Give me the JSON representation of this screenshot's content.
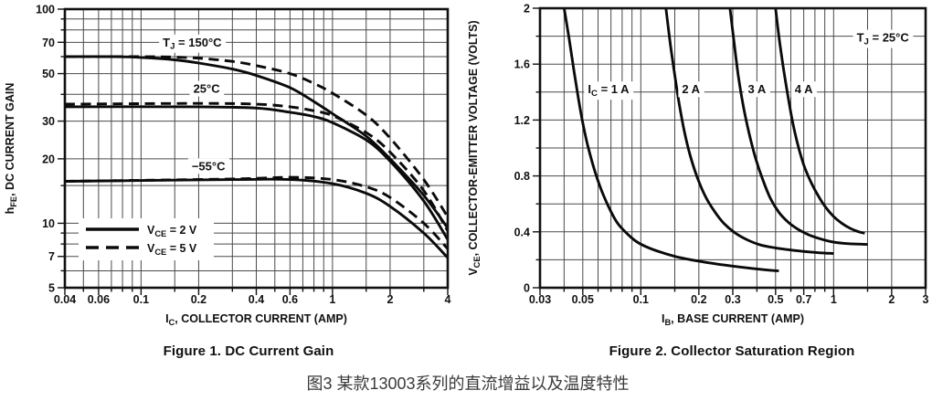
{
  "figure1": {
    "caption": "Figure 1. DC Current Gain"
  },
  "figure2": {
    "caption": "Figure 2. Collector Saturation Region"
  },
  "main_caption": "图3 某款13003系列的直流增益以及温度特性",
  "colors": {
    "curve": "#0a0a0a",
    "grid": "#4a4a4a",
    "frame": "#111111",
    "text": "#111111",
    "label_bg": "#ffffff"
  },
  "chart_data": [
    {
      "type": "line",
      "title": "Figure 1. DC Current Gain",
      "xlabel": "I[C], COLLECTOR CURRENT (AMP)",
      "ylabel": "h[FE], DC CURRENT GAIN",
      "x_scale": "log",
      "y_scale": "log",
      "xlim": [
        0.04,
        4
      ],
      "ylim": [
        5,
        100
      ],
      "grid": true,
      "x_ticks": [
        0.04,
        0.06,
        0.1,
        0.2,
        0.4,
        0.6,
        1,
        2,
        4
      ],
      "x_tick_labels": [
        "0.04",
        "0.06",
        "0.1",
        "0.2",
        "0.4",
        "0.6",
        "1",
        "2",
        "4"
      ],
      "x_minor": [
        0.05,
        0.07,
        0.08,
        0.09,
        0.15,
        0.3,
        0.5,
        0.7,
        0.8,
        0.9,
        1.5,
        3
      ],
      "y_ticks": [
        5,
        7,
        10,
        20,
        30,
        50,
        70,
        100
      ],
      "y_tick_labels": [
        "5",
        "7",
        "10",
        "20",
        "30",
        "50",
        "70",
        "100"
      ],
      "y_minor": [
        6,
        8,
        9,
        15,
        40,
        60,
        80,
        90
      ],
      "annotations": [
        {
          "text": "T[J] = 150°C",
          "x": 0.185,
          "y": 70
        },
        {
          "text": "25°C",
          "x": 0.22,
          "y": 42.5
        },
        {
          "text": "−55°C",
          "x": 0.225,
          "y": 18.5
        }
      ],
      "legend": {
        "position": "bottom-left",
        "items": [
          {
            "style": "solid",
            "label": "V[CE] = 2 V"
          },
          {
            "style": "dashed",
            "label": "V[CE] = 5 V"
          }
        ]
      },
      "series": [
        {
          "label": "T[J] = 150°C",
          "condition": "VCE = 2 V",
          "style": "solid",
          "points": [
            [
              0.04,
              60
            ],
            [
              0.07,
              60
            ],
            [
              0.1,
              59.5
            ],
            [
              0.15,
              58
            ],
            [
              0.2,
              56
            ],
            [
              0.3,
              52.5
            ],
            [
              0.4,
              49
            ],
            [
              0.6,
              43
            ],
            [
              0.8,
              37
            ],
            [
              1,
              32.5
            ],
            [
              1.5,
              25.5
            ],
            [
              2,
              20
            ],
            [
              3,
              13.5
            ],
            [
              4,
              9.5
            ]
          ]
        },
        {
          "label": "T[J] = 150°C",
          "condition": "VCE = 5 V",
          "style": "dashed",
          "points": [
            [
              0.04,
              60
            ],
            [
              0.1,
              60
            ],
            [
              0.15,
              59.7
            ],
            [
              0.2,
              59
            ],
            [
              0.3,
              57
            ],
            [
              0.4,
              54.5
            ],
            [
              0.6,
              50
            ],
            [
              0.8,
              45
            ],
            [
              1,
              40.5
            ],
            [
              1.5,
              32
            ],
            [
              2,
              25
            ],
            [
              3,
              16
            ],
            [
              4,
              10.7
            ]
          ]
        },
        {
          "label": "25°C",
          "condition": "VCE = 2 V",
          "style": "solid",
          "points": [
            [
              0.04,
              35
            ],
            [
              0.2,
              35
            ],
            [
              0.4,
              34.5
            ],
            [
              0.6,
              33
            ],
            [
              0.8,
              31.5
            ],
            [
              1,
              29.5
            ],
            [
              1.5,
              24.5
            ],
            [
              2,
              19.5
            ],
            [
              3,
              12.7
            ],
            [
              4,
              8.4
            ]
          ]
        },
        {
          "label": "25°C",
          "condition": "VCE = 5 V",
          "style": "dashed",
          "points": [
            [
              0.04,
              36
            ],
            [
              0.2,
              36.3
            ],
            [
              0.4,
              36
            ],
            [
              0.6,
              35
            ],
            [
              0.8,
              33.5
            ],
            [
              1,
              31.8
            ],
            [
              1.5,
              26.5
            ],
            [
              2,
              21.5
            ],
            [
              3,
              14.2
            ],
            [
              4,
              9.2
            ]
          ]
        },
        {
          "label": "−55°C",
          "condition": "VCE = 2 V",
          "style": "solid",
          "points": [
            [
              0.04,
              15.7
            ],
            [
              0.3,
              16
            ],
            [
              0.6,
              16
            ],
            [
              1,
              15.3
            ],
            [
              1.5,
              13.8
            ],
            [
              2,
              12
            ],
            [
              3,
              9
            ],
            [
              4,
              6.9
            ]
          ]
        },
        {
          "label": "−55°C",
          "condition": "VCE = 5 V",
          "style": "dashed",
          "points": [
            [
              0.04,
              15.7
            ],
            [
              0.3,
              16.1
            ],
            [
              0.6,
              16.4
            ],
            [
              1,
              16
            ],
            [
              1.5,
              14.8
            ],
            [
              2,
              13.2
            ],
            [
              3,
              10
            ],
            [
              4,
              7.6
            ]
          ]
        }
      ]
    },
    {
      "type": "line",
      "title": "Figure 2. Collector Saturation Region",
      "xlabel": "I[B], BASE CURRENT (AMP)",
      "ylabel": "V[CE], COLLECTOR-EMITTER VOLTAGE (VOLTS)",
      "x_scale": "log",
      "y_scale": "linear",
      "xlim": [
        0.03,
        3
      ],
      "ylim": [
        0,
        2
      ],
      "grid": true,
      "x_ticks": [
        0.03,
        0.05,
        0.1,
        0.2,
        0.3,
        0.5,
        0.7,
        1,
        2,
        3
      ],
      "x_tick_labels": [
        "0.03",
        "0.05",
        "0.1",
        "0.2",
        "0.3",
        "0.5",
        "0.7",
        "1",
        "2",
        "3"
      ],
      "x_minor": [
        0.04,
        0.06,
        0.07,
        0.08,
        0.09,
        0.15,
        0.4,
        0.6,
        0.8,
        0.9,
        1.5
      ],
      "y_ticks": [
        0,
        0.4,
        0.8,
        1.2,
        1.6,
        2
      ],
      "y_tick_labels": [
        "0",
        "0.4",
        "0.8",
        "1.2",
        "1.6",
        "2"
      ],
      "y_minor": [
        0.2,
        0.6,
        1.0,
        1.4,
        1.8
      ],
      "annotations": [
        {
          "text": "I[C] = 1 A",
          "x": 0.068,
          "y": 1.42
        },
        {
          "text": "2 A",
          "x": 0.182,
          "y": 1.42
        },
        {
          "text": "3 A",
          "x": 0.4,
          "y": 1.42
        },
        {
          "text": "4 A",
          "x": 0.7,
          "y": 1.42
        },
        {
          "text": "T[J] = 25°C",
          "x": 1.8,
          "y": 1.79
        }
      ],
      "series": [
        {
          "label": "I[C] = 1 A",
          "style": "solid",
          "points": [
            [
              0.04,
              2.0
            ],
            [
              0.0425,
              1.78
            ],
            [
              0.045,
              1.55
            ],
            [
              0.0475,
              1.35
            ],
            [
              0.05,
              1.18
            ],
            [
              0.053,
              1.02
            ],
            [
              0.057,
              0.86
            ],
            [
              0.062,
              0.71
            ],
            [
              0.068,
              0.58
            ],
            [
              0.075,
              0.47
            ],
            [
              0.083,
              0.4
            ],
            [
              0.095,
              0.33
            ],
            [
              0.11,
              0.285
            ],
            [
              0.13,
              0.25
            ],
            [
              0.16,
              0.215
            ],
            [
              0.2,
              0.19
            ],
            [
              0.27,
              0.163
            ],
            [
              0.35,
              0.143
            ],
            [
              0.45,
              0.127
            ],
            [
              0.52,
              0.12
            ]
          ]
        },
        {
          "label": "2 A",
          "style": "solid",
          "points": [
            [
              0.135,
              2.0
            ],
            [
              0.142,
              1.75
            ],
            [
              0.15,
              1.52
            ],
            [
              0.158,
              1.32
            ],
            [
              0.168,
              1.12
            ],
            [
              0.18,
              0.95
            ],
            [
              0.195,
              0.8
            ],
            [
              0.215,
              0.66
            ],
            [
              0.24,
              0.55
            ],
            [
              0.27,
              0.46
            ],
            [
              0.31,
              0.39
            ],
            [
              0.36,
              0.34
            ],
            [
              0.42,
              0.305
            ],
            [
              0.5,
              0.285
            ],
            [
              0.6,
              0.27
            ],
            [
              0.72,
              0.258
            ],
            [
              0.85,
              0.25
            ],
            [
              1.0,
              0.245
            ]
          ]
        },
        {
          "label": "3 A",
          "style": "solid",
          "points": [
            [
              0.29,
              2.0
            ],
            [
              0.305,
              1.75
            ],
            [
              0.32,
              1.52
            ],
            [
              0.34,
              1.3
            ],
            [
              0.365,
              1.1
            ],
            [
              0.395,
              0.92
            ],
            [
              0.43,
              0.77
            ],
            [
              0.47,
              0.64
            ],
            [
              0.52,
              0.54
            ],
            [
              0.58,
              0.47
            ],
            [
              0.65,
              0.42
            ],
            [
              0.74,
              0.38
            ],
            [
              0.85,
              0.35
            ],
            [
              1.0,
              0.326
            ],
            [
              1.2,
              0.315
            ],
            [
              1.5,
              0.31
            ]
          ]
        },
        {
          "label": "4 A",
          "style": "solid",
          "points": [
            [
              0.5,
              2.0
            ],
            [
              0.52,
              1.8
            ],
            [
              0.545,
              1.6
            ],
            [
              0.575,
              1.4
            ],
            [
              0.61,
              1.2
            ],
            [
              0.65,
              1.03
            ],
            [
              0.7,
              0.88
            ],
            [
              0.76,
              0.76
            ],
            [
              0.83,
              0.66
            ],
            [
              0.91,
              0.575
            ],
            [
              1.0,
              0.51
            ],
            [
              1.1,
              0.462
            ],
            [
              1.22,
              0.425
            ],
            [
              1.35,
              0.4
            ],
            [
              1.45,
              0.39
            ]
          ]
        }
      ]
    }
  ]
}
